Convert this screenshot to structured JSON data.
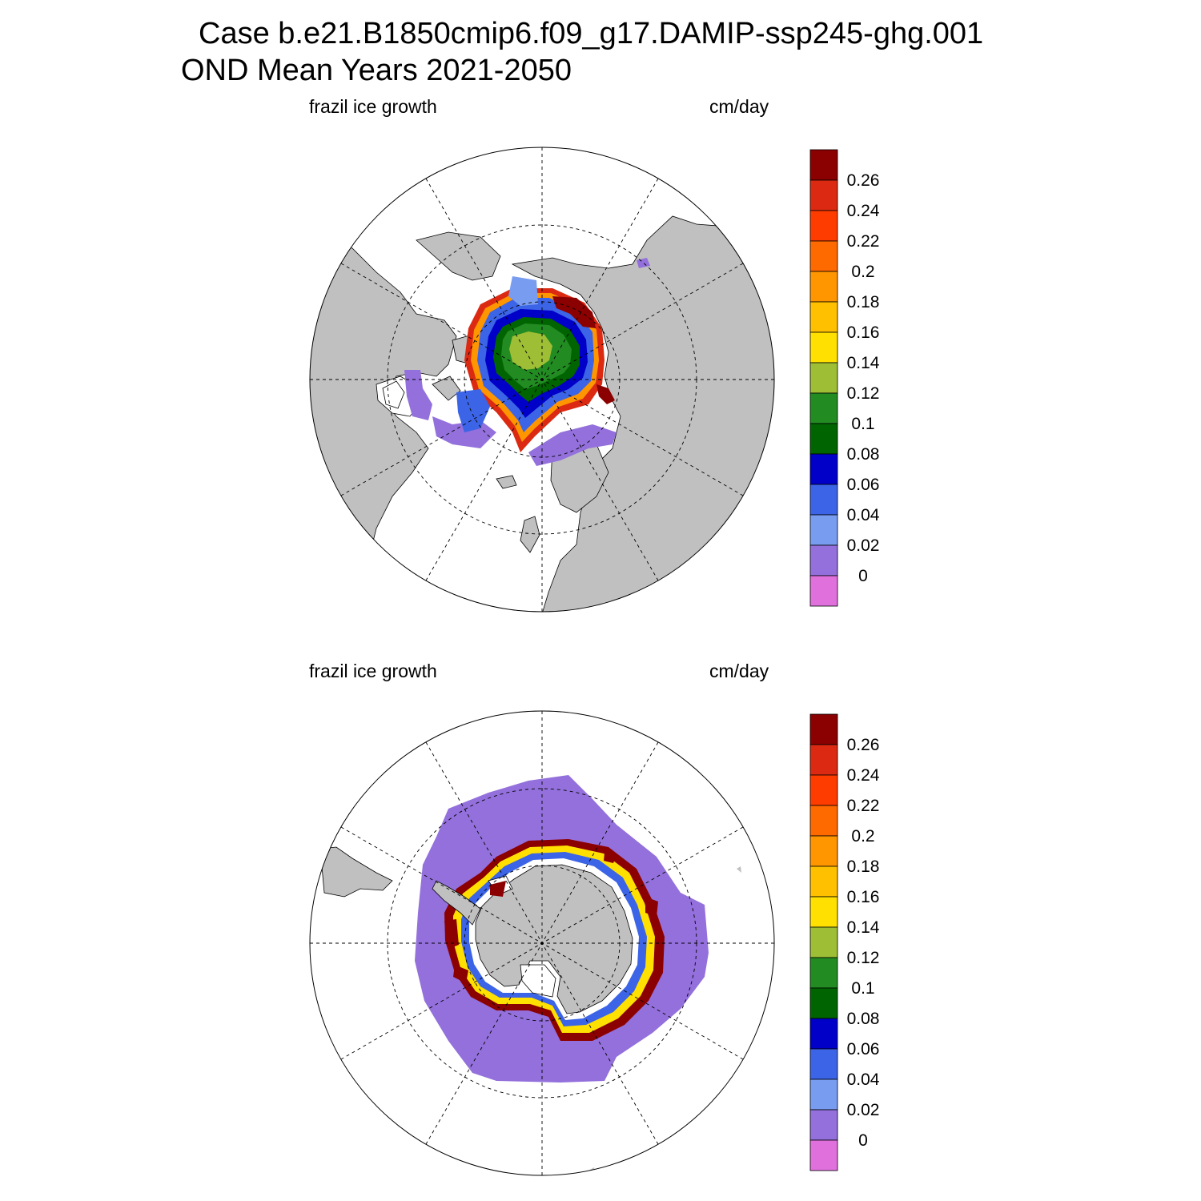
{
  "title": {
    "line1": "Case b.e21.B1850cmip6.f09_g17.DAMIP-ssp245-ghg.001",
    "line2": "OND Mean   Years 2021-2050"
  },
  "panels": [
    {
      "id": "north",
      "left_label": "frazil ice growth",
      "right_label": "cm/day"
    },
    {
      "id": "south",
      "left_label": "frazil ice growth",
      "right_label": "cm/day"
    }
  ],
  "colorbar": {
    "labels": [
      "0.26",
      "0.24",
      "0.22",
      "0.2",
      "0.18",
      "0.16",
      "0.14",
      "0.12",
      "0.1",
      "0.08",
      "0.06",
      "0.04",
      "0.02",
      "0"
    ],
    "colors": [
      "#8b0000",
      "#dc2a12",
      "#ff3c00",
      "#ff6a00",
      "#ff9600",
      "#ffc000",
      "#ffe000",
      "#9dbe35",
      "#228b22",
      "#006400",
      "#0000c8",
      "#3c64e6",
      "#789cf0",
      "#9370db",
      "#e070dc"
    ]
  },
  "colors": {
    "land": "#c0c0c0",
    "ocean": "#ffffff"
  }
}
